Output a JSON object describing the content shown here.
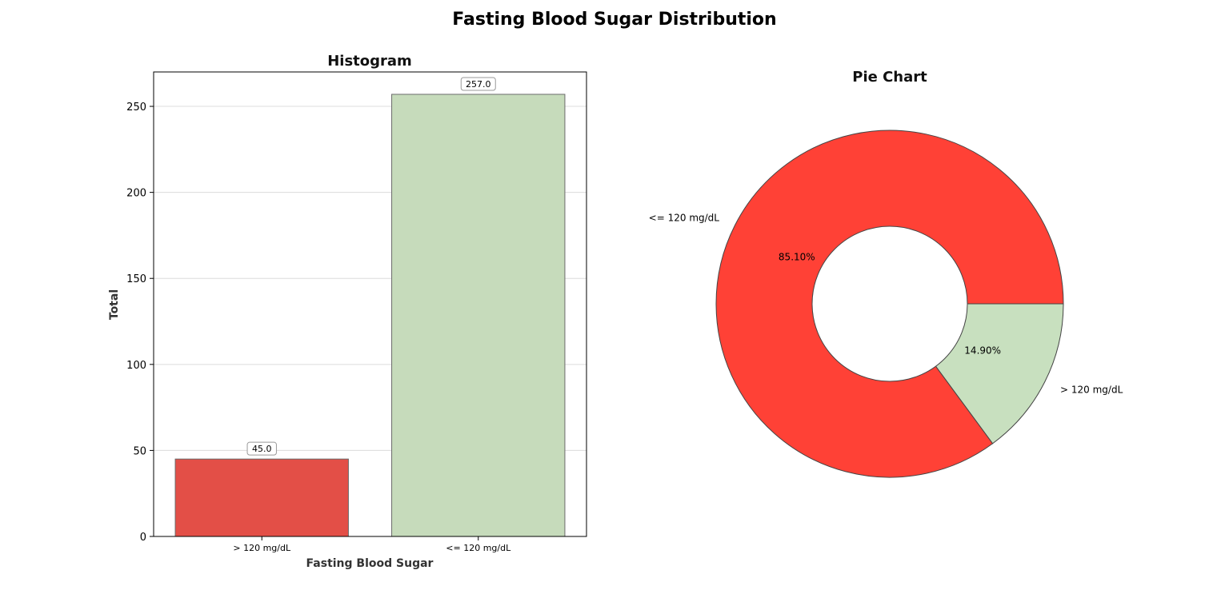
{
  "figure": {
    "title": "Fasting Blood Sugar Distribution"
  },
  "chart_data": [
    {
      "type": "bar",
      "title": "Histogram",
      "xlabel": "Fasting Blood Sugar",
      "ylabel": "Total",
      "categories": [
        "> 120 mg/dL",
        "<= 120 mg/dL"
      ],
      "values": [
        45,
        257
      ],
      "value_labels": [
        "45.0",
        "257.0"
      ],
      "colors": [
        "#e34f47",
        "#c6dbbb"
      ],
      "ylim": [
        0,
        270
      ],
      "yticks": [
        0,
        50,
        100,
        150,
        200,
        250
      ],
      "grid": "y"
    },
    {
      "type": "pie",
      "title": "Pie Chart",
      "donut": true,
      "slices": [
        {
          "label": "<= 120 mg/dL",
          "value": 85.1,
          "pct_label": "85.10%",
          "color": "#ff4136"
        },
        {
          "label": "> 120 mg/dL",
          "value": 14.9,
          "pct_label": "14.90%",
          "color": "#c8e0bf"
        }
      ]
    }
  ]
}
